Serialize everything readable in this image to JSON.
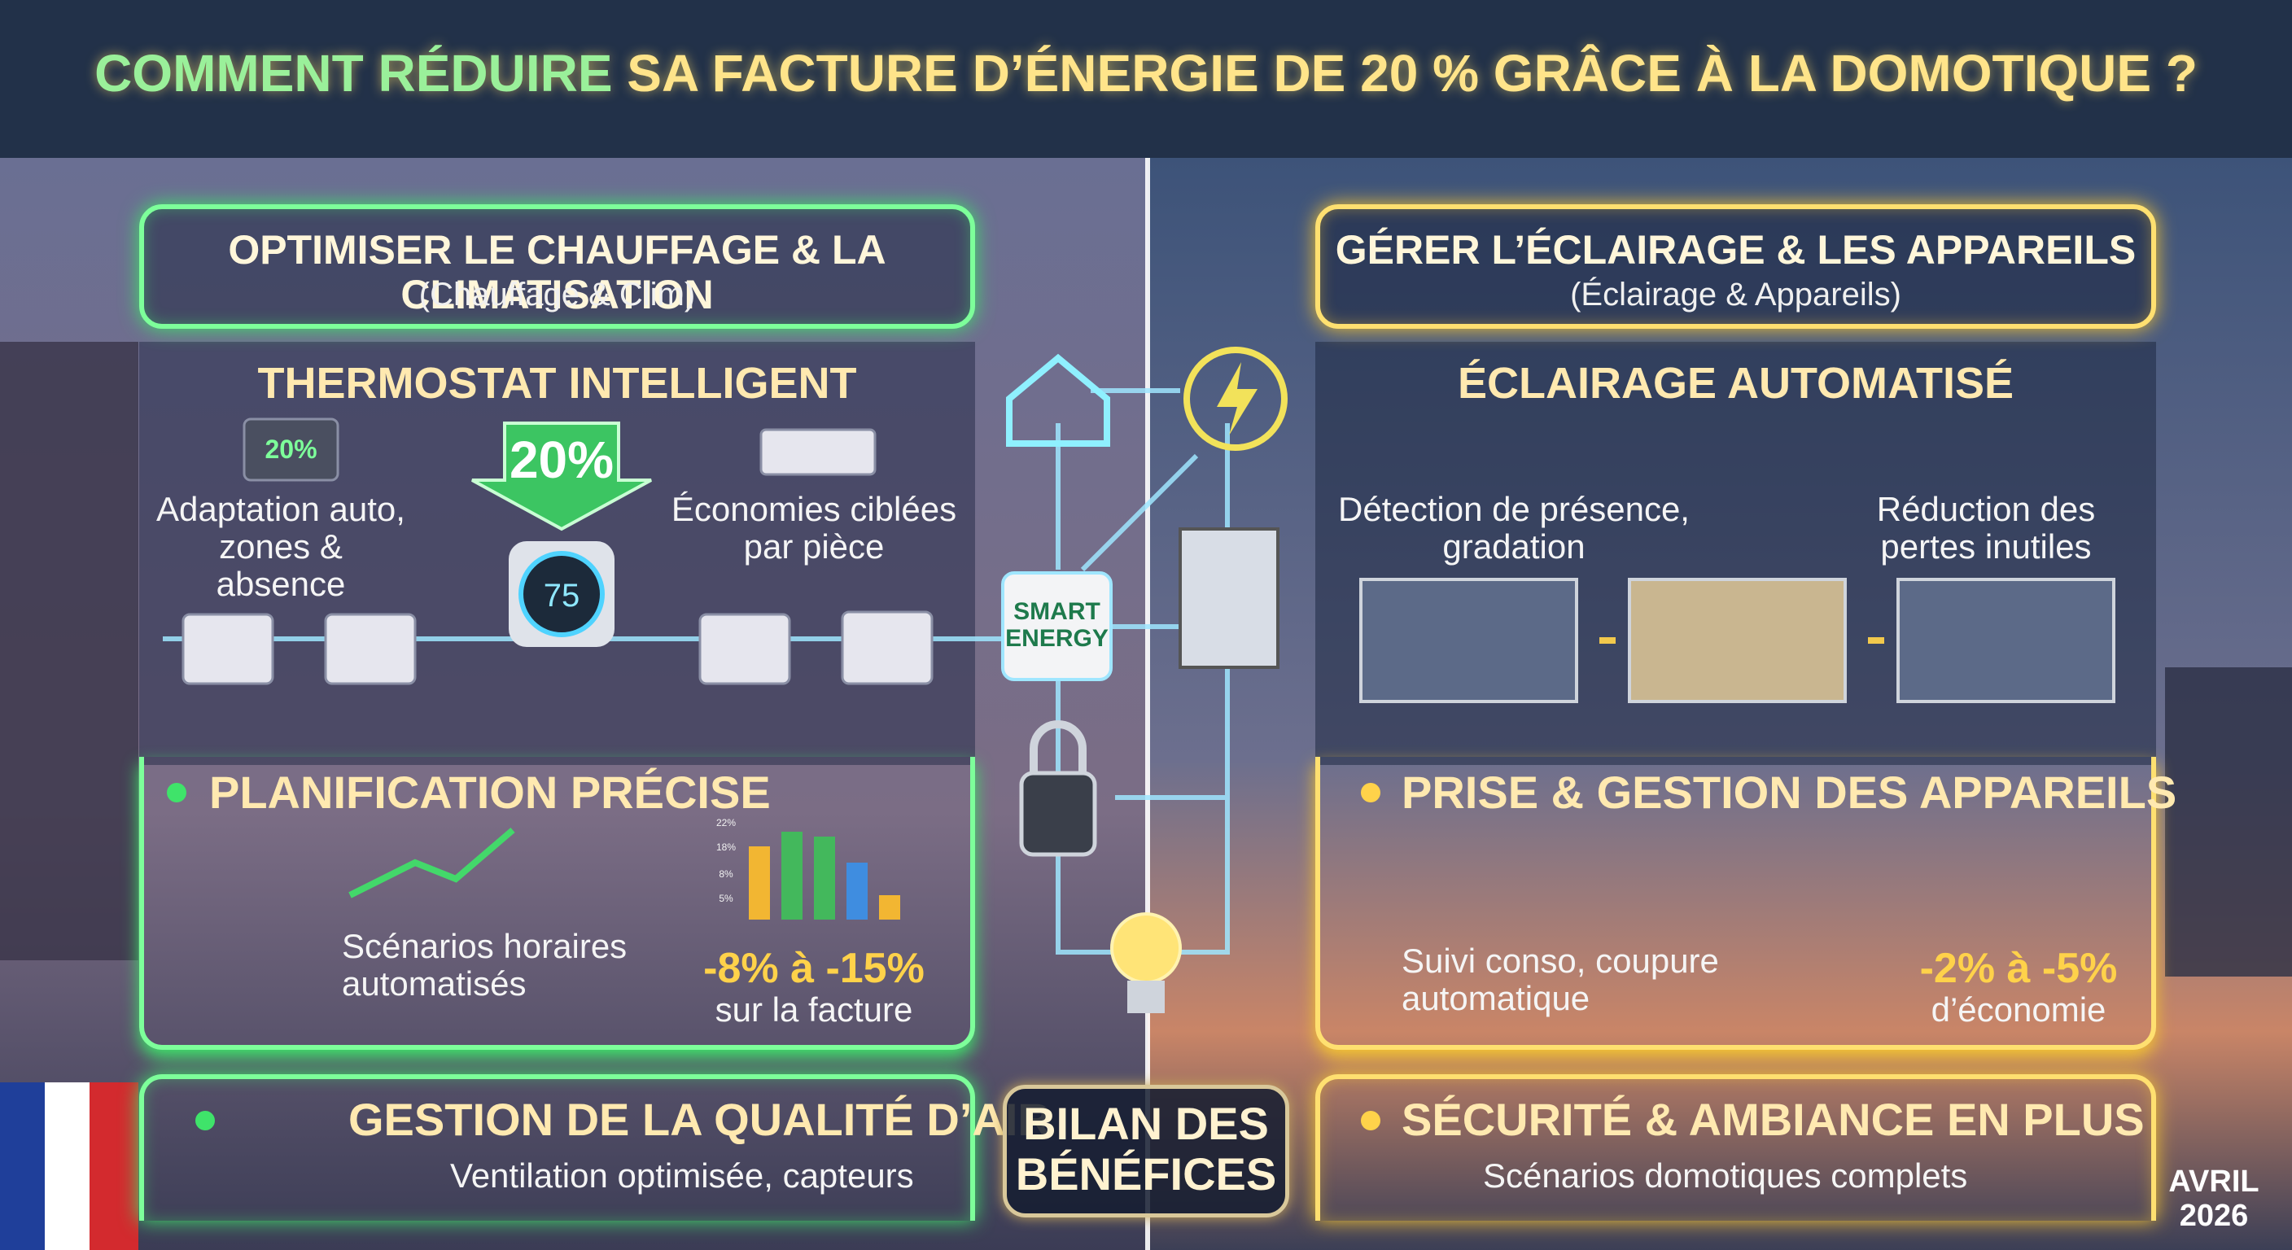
{
  "title": {
    "part1": "COMMENT RÉDUIRE",
    "part2": "SA FACTURE D’ÉNERGIE DE 20 % GRÂCE À LA DOMOTIQUE ?"
  },
  "left": {
    "header": {
      "title": "OPTIMISER LE CHAUFFAGE & LA CLIMATISATION",
      "subtitle": "(Chauffage & Clim)"
    },
    "thermostat": {
      "title": "THERMOSTAT INTELLIGENT",
      "badge": "20%",
      "display": "20%",
      "dial": "75",
      "left_caption": "Adaptation auto, zones & absence",
      "right_caption": "Économies ciblées par pièce"
    },
    "planning": {
      "title": "PLANIFICATION PRÉCISE",
      "caption": "Scénarios horaires automatisés",
      "chart_ticks": [
        "22%",
        "18%",
        "8%",
        "5%"
      ],
      "saving": "-8% à -15%",
      "saving_caption": "sur la facture"
    },
    "air": {
      "title": "GESTION DE LA QUALITÉ D’AIR",
      "caption": "Ventilation optimisée, capteurs"
    }
  },
  "center": {
    "hub": "SMART ENERGY",
    "summary": "BILAN DES BÉNÉFICES"
  },
  "right": {
    "header": {
      "title": "GÉRER L’ÉCLAIRAGE & LES APPAREILS",
      "subtitle": "(Éclairage & Appareils)"
    },
    "lighting": {
      "title": "ÉCLAIRAGE AUTOMATISÉ",
      "left_caption": "Détection de présence, gradation",
      "right_caption": "Réduction des pertes inutiles"
    },
    "appliances": {
      "title": "PRISE & GESTION DES APPAREILS",
      "caption": "Suivi conso, coupure automatique",
      "saving": "-2% à -5%",
      "saving_caption": "d’économie"
    },
    "security": {
      "title": "SÉCURITÉ & AMBIANCE EN PLUS",
      "caption": "Scénarios domotiques complets"
    }
  },
  "date": "AVRIL 2026"
}
